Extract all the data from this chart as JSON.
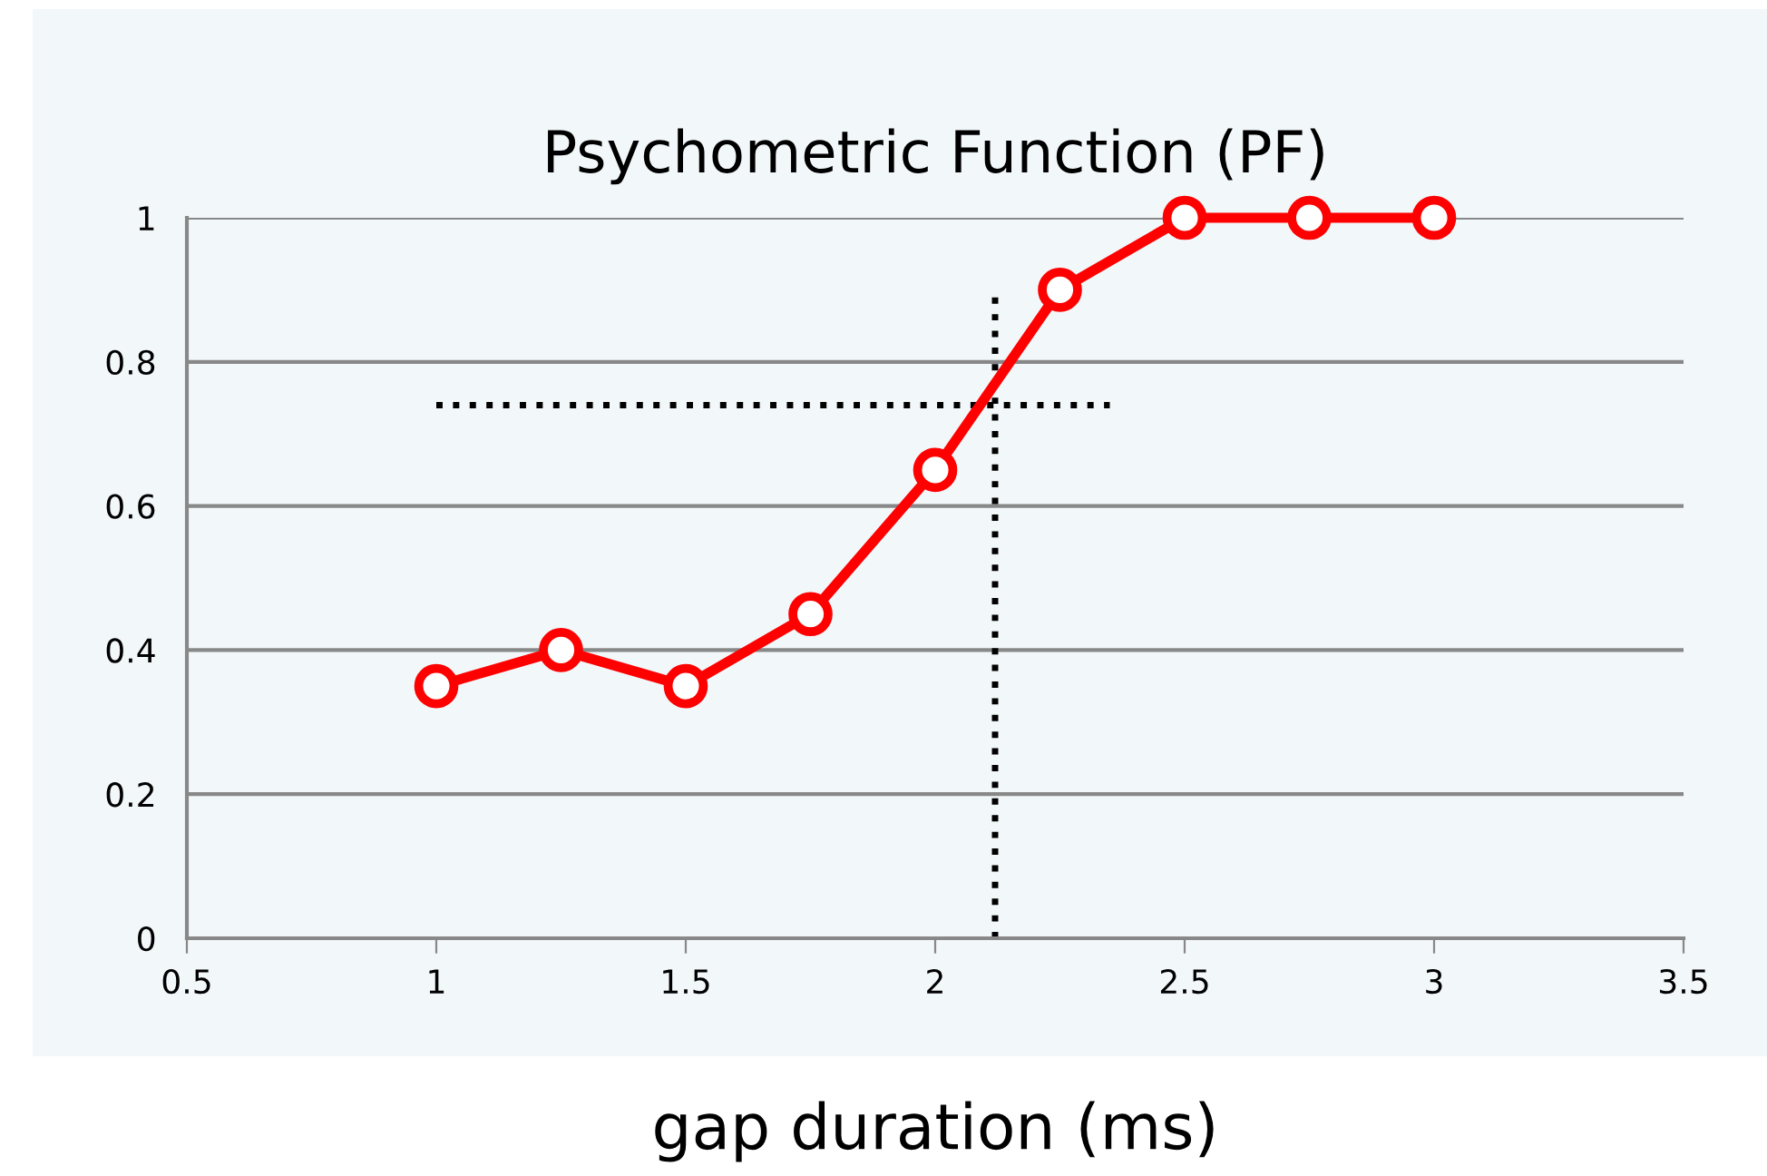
{
  "chart_data": {
    "type": "line",
    "title": "Psychometric Function (PF)",
    "xlabel": "gap duration (ms)",
    "x": [
      1,
      1.25,
      1.5,
      1.75,
      2,
      2.25,
      2.5,
      2.75,
      3
    ],
    "series": [
      {
        "color": "#ff0000",
        "values": [
          0.35,
          0.4,
          0.35,
          0.45,
          0.65,
          0.9,
          1,
          1,
          1
        ],
        "marker": "circle",
        "line_style": "solid"
      },
      {
        "type": "line",
        "color": "#000000",
        "x": [
          1,
          2.35
        ],
        "values": [
          0.74,
          0.74
        ],
        "marker": "none",
        "line_style": "dotted"
      },
      {
        "type": "line",
        "color": "#000000",
        "x": [
          2.12,
          2.12
        ],
        "values": [
          0,
          0.89
        ],
        "marker": "none",
        "line_style": "dotted"
      }
    ],
    "xlim": [
      0.5,
      3.5
    ],
    "xticks": [
      0.5,
      1,
      1.5,
      2,
      2.5,
      3,
      3.5
    ],
    "ylim": [
      0,
      1
    ],
    "yticks": [
      0,
      0.2,
      0.4,
      0.6,
      0.8,
      1
    ],
    "grid": "y"
  }
}
